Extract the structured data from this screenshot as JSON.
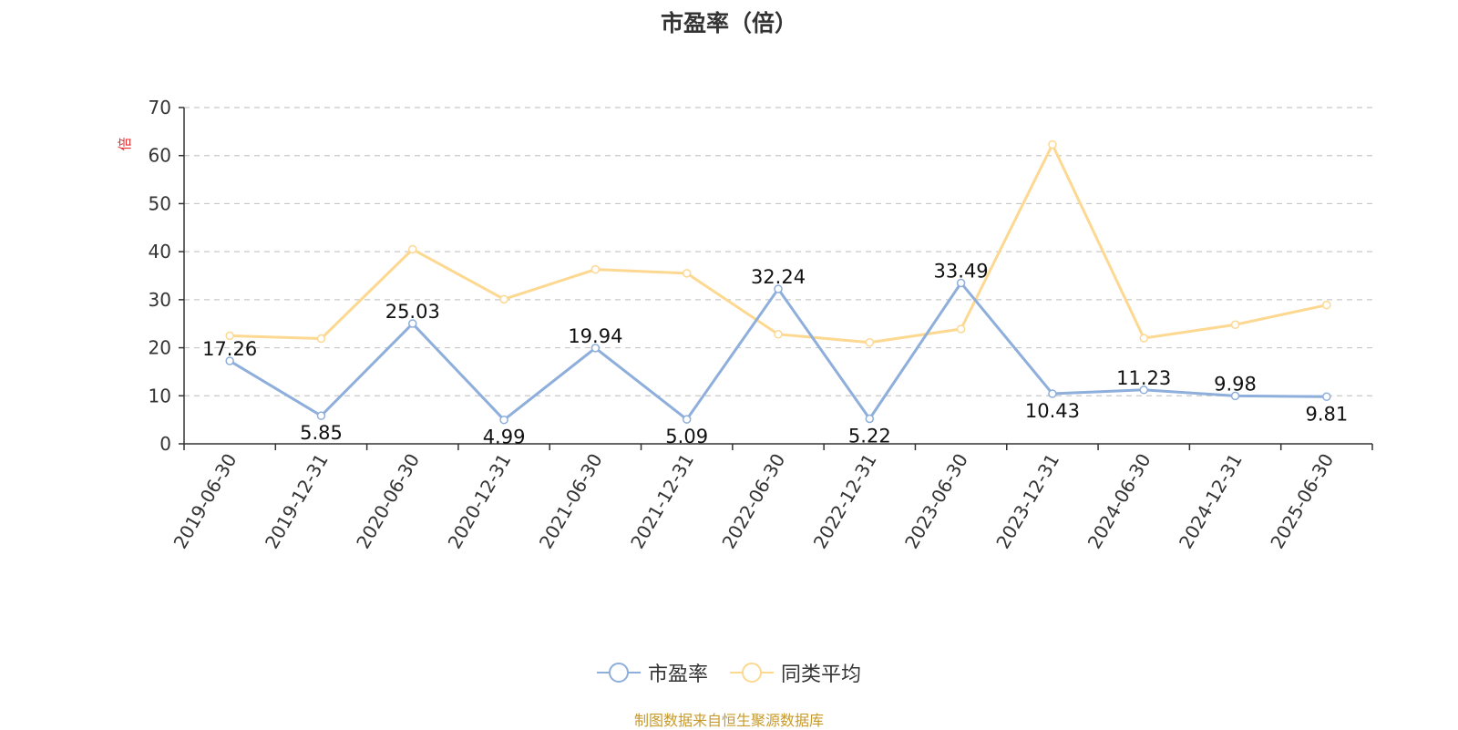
{
  "chart_data": {
    "type": "line",
    "title": "市盈率（倍）",
    "ylabel": "倍",
    "xlabel": "",
    "ylim": [
      0,
      70
    ],
    "yticks": [
      0,
      10,
      20,
      30,
      40,
      50,
      60,
      70
    ],
    "grid": true,
    "legend_position": "bottom",
    "categories": [
      "2019-06-30",
      "2019-12-31",
      "2020-06-30",
      "2020-12-31",
      "2021-06-30",
      "2021-12-31",
      "2022-06-30",
      "2022-12-31",
      "2023-06-30",
      "2023-12-31",
      "2024-06-30",
      "2024-12-31",
      "2025-06-30"
    ],
    "series": [
      {
        "name": "市盈率",
        "color": "#8eaedb",
        "values": [
          17.26,
          5.85,
          25.03,
          4.99,
          19.94,
          5.09,
          32.24,
          5.22,
          33.49,
          10.43,
          11.23,
          9.98,
          9.81
        ],
        "labels": [
          "17.26",
          "5.85",
          "25.03",
          "4.99",
          "19.94",
          "5.09",
          "32.24",
          "5.22",
          "33.49",
          "10.43",
          "11.23",
          "9.98",
          "9.81"
        ]
      },
      {
        "name": "同类平均",
        "color": "#fdd891",
        "values": [
          22.5,
          21.9,
          40.5,
          30.1,
          36.3,
          35.5,
          22.8,
          21.1,
          23.9,
          62.3,
          22.0,
          24.8,
          28.9
        ]
      }
    ]
  },
  "source": "制图数据来自恒生聚源数据库"
}
